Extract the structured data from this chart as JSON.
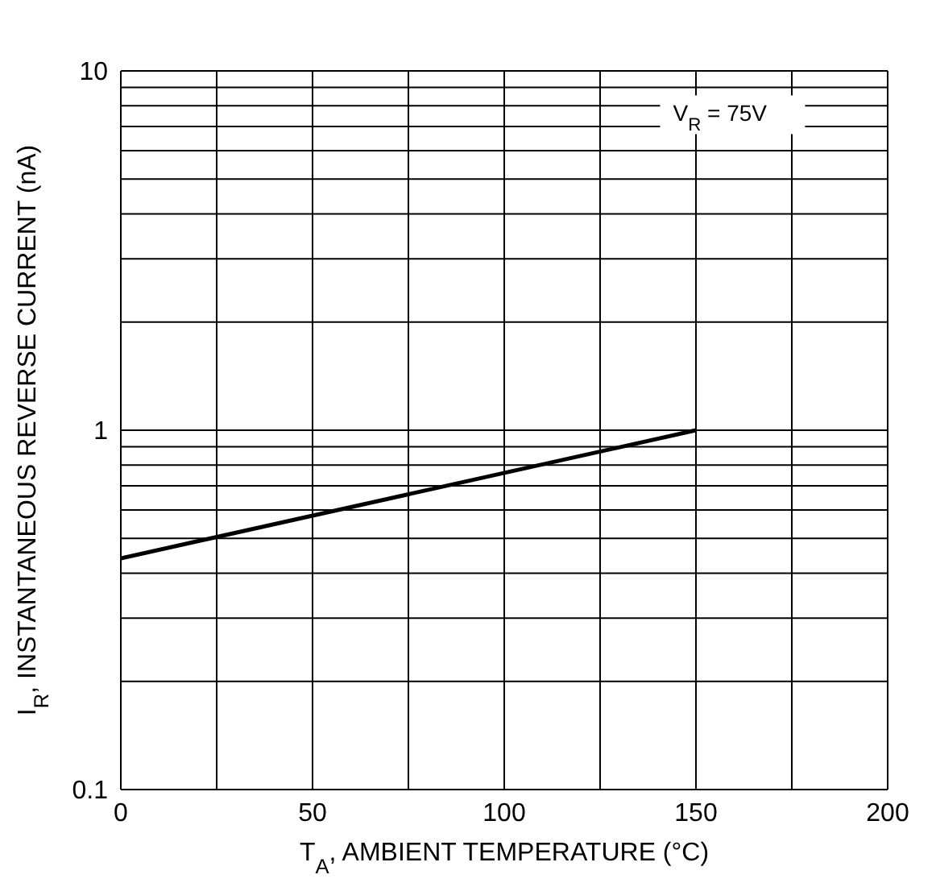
{
  "chart_data": {
    "type": "line",
    "xlabel": "T$_{A}$, AMBIENT TEMPERATURE (°C)",
    "ylabel": "I$_{R}$, INSTANTANEOUS REVERSE CURRENT (nA)",
    "annotations": [
      "V$_{R}$ = 75V"
    ],
    "x": [
      0,
      150
    ],
    "series": [
      {
        "color": "#000000",
        "values": [
          0.44,
          1.0
        ]
      }
    ],
    "xlim": [
      0,
      200
    ],
    "xticks": [
      0,
      {
        "value": 25,
        "label": null
      },
      50,
      {
        "value": 75,
        "label": null
      },
      100,
      {
        "value": 125,
        "label": null
      },
      150,
      {
        "value": 175,
        "label": null
      },
      200
    ],
    "ylim": [
      0.1,
      10
    ],
    "yticks": [
      0.1,
      {
        "value": 0.2,
        "label": null
      },
      {
        "value": 0.3,
        "label": null
      },
      {
        "value": 0.4,
        "label": null
      },
      {
        "value": 0.5,
        "label": null
      },
      {
        "value": 0.6,
        "label": null
      },
      {
        "value": 0.7,
        "label": null
      },
      {
        "value": 0.8,
        "label": null
      },
      {
        "value": 0.9,
        "label": null
      },
      1,
      {
        "value": 2,
        "label": null
      },
      {
        "value": 3,
        "label": null
      },
      {
        "value": 4,
        "label": null
      },
      {
        "value": 5,
        "label": null
      },
      {
        "value": 6,
        "label": null
      },
      {
        "value": 7,
        "label": null
      },
      {
        "value": 8,
        "label": null
      },
      {
        "value": 9,
        "label": null
      },
      10
    ],
    "log": true,
    "grid": true,
    "marker": "none",
    "line_style": "solid"
  }
}
